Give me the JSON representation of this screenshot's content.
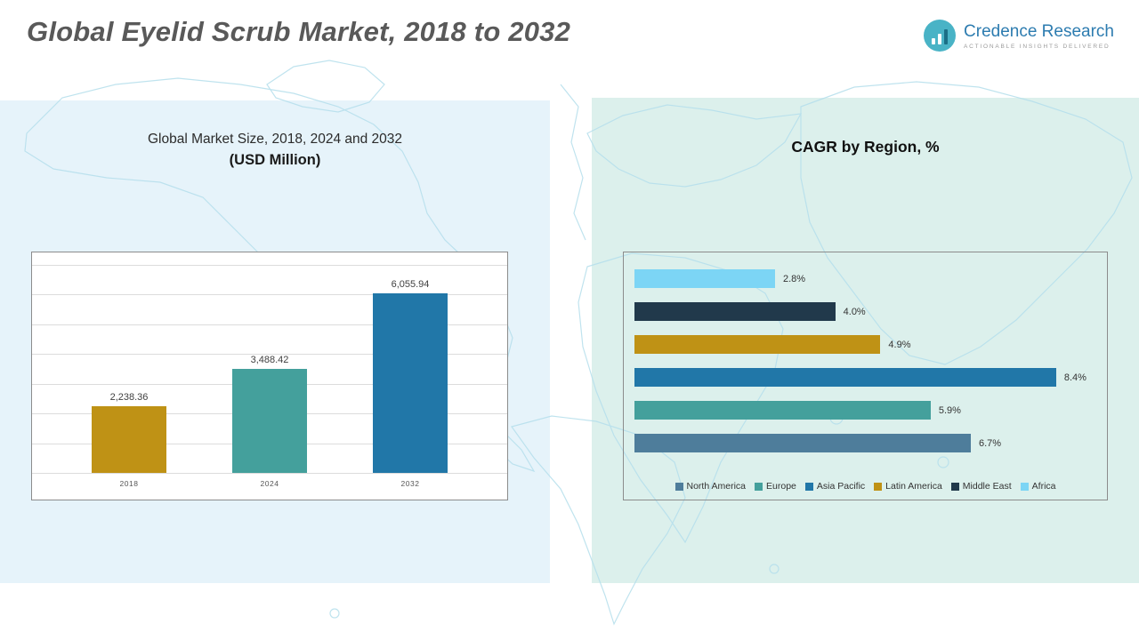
{
  "page": {
    "title": "Global Eyelid Scrub Market, 2018 to 2032"
  },
  "logo": {
    "name": "Credence Research",
    "tagline": "Actionable Insights Delivered"
  },
  "left_panel": {
    "title_line1": "Global Market Size, 2018, 2024 and 2032",
    "title_line2": "(USD Million)"
  },
  "right_panel": {
    "title": "CAGR by Region, %"
  },
  "colors": {
    "gold": "#bf9215",
    "teal": "#44a09c",
    "blue": "#2177a8",
    "steel_blue": "#4e7d9b",
    "navy": "#21394b",
    "light_blue": "#7cd5f5",
    "panel_left_bg": "#e6f3fa",
    "panel_right_bg": "#dcf0ec"
  },
  "chart_data": [
    {
      "type": "bar",
      "title": "Global Market Size, 2018, 2024 and 2032 (USD Million)",
      "categories": [
        "2018",
        "2024",
        "2032"
      ],
      "values": [
        2238.36,
        3488.42,
        6055.94
      ],
      "value_labels": [
        "2,238.36",
        "3,488.42",
        "6,055.94"
      ],
      "colors": [
        "#bf9215",
        "#44a09c",
        "#2177a8"
      ],
      "xlabel": "",
      "ylabel": "",
      "ylim": [
        0,
        7000
      ],
      "grid": true,
      "gridline_count": 7,
      "legend_position": "none"
    },
    {
      "type": "bar-horizontal",
      "title": "CAGR by Region, %",
      "categories": [
        "Africa",
        "Middle East",
        "Latin America",
        "Asia Pacific",
        "Europe",
        "North America"
      ],
      "values": [
        2.8,
        4.0,
        4.9,
        8.4,
        5.9,
        6.7
      ],
      "value_labels": [
        "2.8%",
        "4.0%",
        "4.9%",
        "8.4%",
        "5.9%",
        "6.7%"
      ],
      "colors": [
        "#7cd5f5",
        "#21394b",
        "#bf9215",
        "#2177a8",
        "#44a09c",
        "#4e7d9b"
      ],
      "xlabel": "",
      "ylabel": "",
      "xlim": [
        0,
        9.2
      ],
      "grid": false,
      "legend_position": "bottom",
      "legend_items": [
        {
          "label": "North America",
          "color": "#4e7d9b"
        },
        {
          "label": "Europe",
          "color": "#44a09c"
        },
        {
          "label": "Asia Pacific",
          "color": "#2177a8"
        },
        {
          "label": "Latin America",
          "color": "#bf9215"
        },
        {
          "label": "Middle East",
          "color": "#21394b"
        },
        {
          "label": "Africa",
          "color": "#7cd5f5"
        }
      ]
    }
  ]
}
